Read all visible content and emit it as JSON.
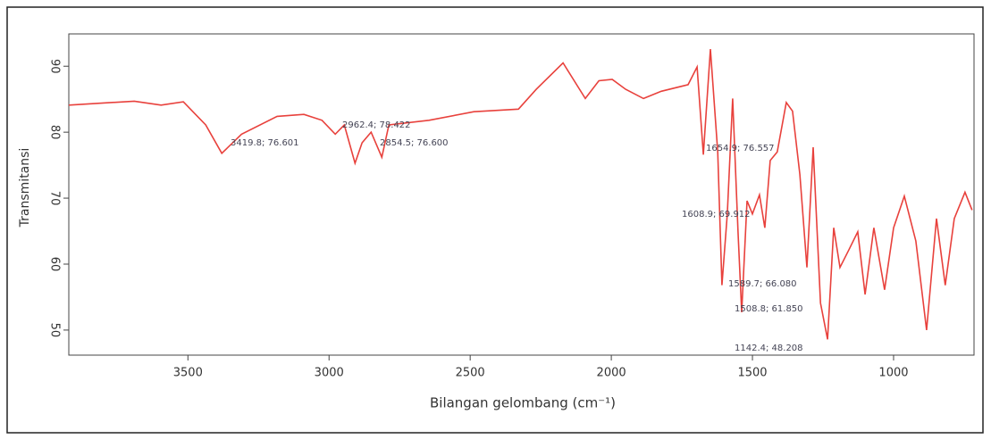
{
  "chart_data": {
    "type": "line",
    "xlabel": "Bilangan gelombang (cm⁻¹)",
    "ylabel": "Transmitansi",
    "xlim": [
      3922,
      715
    ],
    "xticks": [
      3500,
      3000,
      2500,
      2000,
      1500,
      1000
    ],
    "ylim": [
      46.2,
      94.9
    ],
    "yticks": [
      50,
      60,
      70,
      80,
      90
    ],
    "color": "#e8413c",
    "x": [
      3922,
      3690,
      3595,
      3516,
      3437,
      3380,
      3310,
      3184,
      3089,
      3025,
      2978,
      2946,
      2908,
      2883,
      2851,
      2813,
      2788,
      2646,
      2487,
      2329,
      2266,
      2171,
      2092,
      2044,
      1997,
      1949,
      1886,
      1823,
      1728,
      1696,
      1674,
      1649,
      1623,
      1608,
      1589,
      1570,
      1551,
      1538,
      1519,
      1500,
      1475,
      1456,
      1437,
      1412,
      1380,
      1358,
      1332,
      1307,
      1285,
      1259,
      1234,
      1212,
      1190,
      1158,
      1127,
      1101,
      1070,
      1032,
      1000,
      962,
      921,
      883,
      848,
      817,
      785,
      747,
      722
    ],
    "values": [
      84.1,
      84.7,
      84.1,
      84.6,
      81.1,
      76.8,
      79.7,
      82.4,
      82.7,
      81.8,
      79.7,
      81.1,
      75.3,
      78.4,
      80.0,
      76.2,
      81.1,
      81.8,
      83.1,
      83.5,
      86.5,
      90.5,
      85.1,
      87.8,
      88.0,
      86.5,
      85.1,
      86.2,
      87.2,
      89.9,
      76.6,
      92.6,
      77.0,
      56.8,
      67.6,
      85.1,
      64.9,
      52.7,
      69.6,
      67.6,
      70.5,
      65.5,
      75.7,
      77.0,
      84.5,
      83.2,
      73.6,
      59.5,
      77.7,
      54.1,
      48.6,
      65.5,
      59.5,
      62.2,
      64.9,
      55.4,
      65.5,
      56.1,
      65.5,
      70.3,
      63.5,
      50.0,
      66.9,
      56.8,
      66.9,
      70.9,
      68.2
    ],
    "annotations": [
      "3419.8; 76.601",
      "2962.4; 78.422",
      "2854.5; 76.600",
      "1654.9; 76.557",
      "1608.9; 69.912",
      "1589.7; 66.080",
      "1508.8; 61.850",
      "1142.4; 48.208"
    ]
  }
}
